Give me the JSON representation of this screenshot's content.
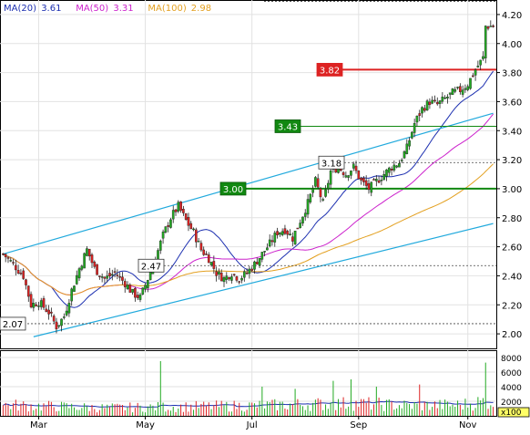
{
  "chart_data": {
    "type": "candlestick",
    "indicators": [
      {
        "name": "MA(20)",
        "value": "3.61",
        "color": "#1c2fb0"
      },
      {
        "name": "MA(50)",
        "value": "3.31",
        "color": "#cc22cc"
      },
      {
        "name": "MA(100)",
        "value": "2.98",
        "color": "#e3a020"
      }
    ],
    "x_ticks": [
      {
        "label": "Mar",
        "t": 14
      },
      {
        "label": "May",
        "t": 56
      },
      {
        "label": "Jul",
        "t": 98
      },
      {
        "label": "Sep",
        "t": 140
      },
      {
        "label": "Nov",
        "t": 183
      }
    ],
    "y_ticks": [
      "4.20",
      "4.00",
      "3.80",
      "3.60",
      "3.40",
      "3.20",
      "3.00",
      "2.80",
      "2.60",
      "2.40",
      "2.20",
      "2.00"
    ],
    "ylim": [
      1.9,
      4.3
    ],
    "volume_ticks": [
      "8000",
      "6000",
      "4000",
      "2000"
    ],
    "volume_ylim": [
      0,
      9000
    ],
    "volume_unit": "x100",
    "price_labels": [
      {
        "text": "3.82",
        "value": 3.82,
        "style": "red"
      },
      {
        "text": "3.43",
        "value": 3.43,
        "style": "green"
      },
      {
        "text": "3.00",
        "value": 3.0,
        "style": "green"
      },
      {
        "text": "3.18",
        "value": 3.18,
        "style": "white"
      },
      {
        "text": "2.47",
        "value": 2.47,
        "style": "white"
      },
      {
        "text": "2.07",
        "value": 2.07,
        "style": "white"
      }
    ],
    "channel": {
      "upper": [
        [
          0,
          2.55
        ],
        [
          193,
          3.52
        ]
      ],
      "lower": [
        [
          12,
          1.98
        ],
        [
          193,
          2.76
        ]
      ]
    },
    "colors": {
      "up": "#22aa22",
      "down": "#dd2222",
      "channel": "#22aadd",
      "support": "#118811",
      "resistance": "#dd2222"
    },
    "key_points": [
      [
        0,
        2.55
      ],
      [
        4,
        2.48
      ],
      [
        8,
        2.4
      ],
      [
        11,
        2.2
      ],
      [
        14,
        2.22
      ],
      [
        18,
        2.15
      ],
      [
        21,
        2.05
      ],
      [
        24,
        2.12
      ],
      [
        27,
        2.3
      ],
      [
        30,
        2.45
      ],
      [
        33,
        2.58
      ],
      [
        36,
        2.45
      ],
      [
        40,
        2.38
      ],
      [
        44,
        2.42
      ],
      [
        48,
        2.35
      ],
      [
        51,
        2.28
      ],
      [
        54,
        2.25
      ],
      [
        57,
        2.38
      ],
      [
        60,
        2.52
      ],
      [
        63,
        2.68
      ],
      [
        66,
        2.8
      ],
      [
        69,
        2.88
      ],
      [
        72,
        2.78
      ],
      [
        75,
        2.7
      ],
      [
        78,
        2.58
      ],
      [
        81,
        2.52
      ],
      [
        84,
        2.42
      ],
      [
        87,
        2.38
      ],
      [
        90,
        2.42
      ],
      [
        93,
        2.38
      ],
      [
        96,
        2.42
      ],
      [
        99,
        2.48
      ],
      [
        102,
        2.55
      ],
      [
        105,
        2.62
      ],
      [
        108,
        2.7
      ],
      [
        111,
        2.72
      ],
      [
        114,
        2.66
      ],
      [
        117,
        2.78
      ],
      [
        120,
        2.9
      ],
      [
        123,
        3.05
      ],
      [
        126,
        2.9
      ],
      [
        129,
        3.12
      ],
      [
        132,
        3.15
      ],
      [
        135,
        3.1
      ],
      [
        138,
        3.15
      ],
      [
        141,
        3.05
      ],
      [
        144,
        3.0
      ],
      [
        147,
        3.05
      ],
      [
        150,
        3.1
      ],
      [
        153,
        3.15
      ],
      [
        156,
        3.18
      ],
      [
        159,
        3.28
      ],
      [
        162,
        3.45
      ],
      [
        165,
        3.55
      ],
      [
        168,
        3.6
      ],
      [
        171,
        3.58
      ],
      [
        174,
        3.62
      ],
      [
        177,
        3.66
      ],
      [
        180,
        3.68
      ],
      [
        183,
        3.72
      ],
      [
        186,
        3.82
      ],
      [
        189,
        3.9
      ],
      [
        190,
        4.12
      ]
    ],
    "volume_key_points": [
      [
        0,
        1500
      ],
      [
        20,
        1300
      ],
      [
        40,
        1100
      ],
      [
        60,
        1200
      ],
      [
        80,
        1300
      ],
      [
        100,
        1400
      ],
      [
        120,
        1600
      ],
      [
        140,
        1700
      ],
      [
        160,
        1400
      ],
      [
        180,
        1500
      ],
      [
        190,
        2000
      ]
    ],
    "volume_spikes": [
      [
        62,
        7500
      ],
      [
        102,
        4000
      ],
      [
        115,
        3700
      ],
      [
        130,
        4800
      ],
      [
        137,
        5000
      ],
      [
        147,
        4000
      ],
      [
        164,
        4300
      ],
      [
        190,
        7300
      ]
    ],
    "seed": 7
  }
}
